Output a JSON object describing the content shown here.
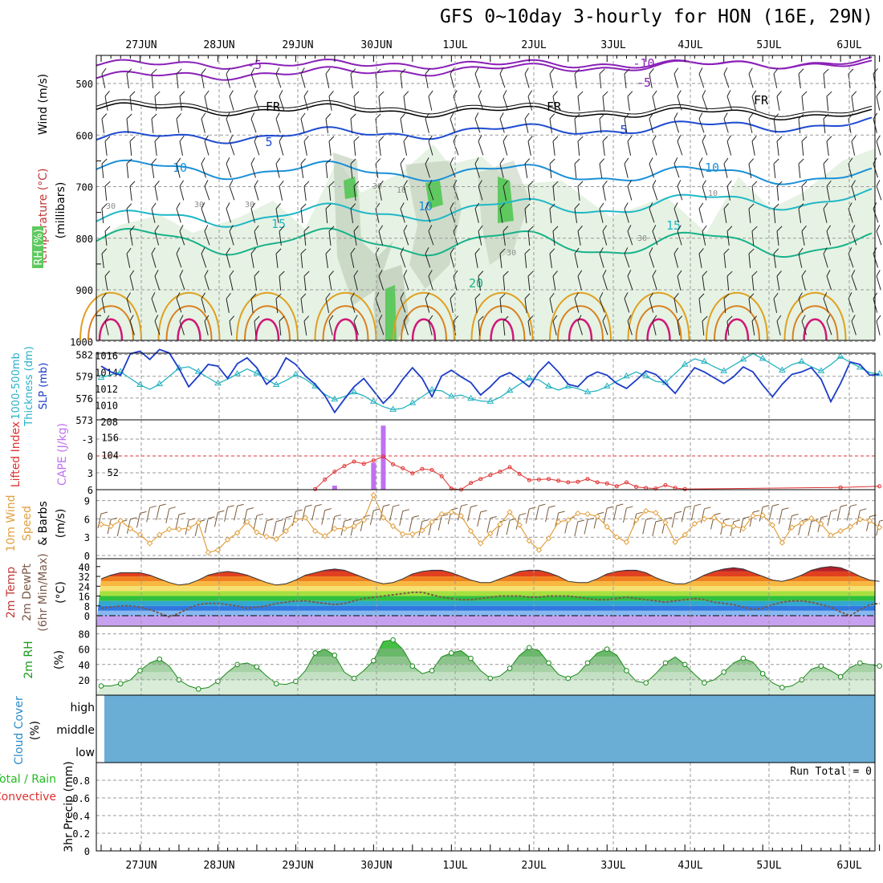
{
  "header": {
    "title": "GFS 0~10day 3-hourly for HON (16E, 29N)"
  },
  "dates": [
    "27JUN",
    "28JUN",
    "29JUN",
    "30JUN",
    "1JUL",
    "2JUL",
    "3JUL",
    "4JUL",
    "5JUL",
    "6JUL"
  ],
  "colors": {
    "frame": "#000000",
    "grid": "#9a9a9a",
    "rh_light": "#e6f2e3",
    "rh_mid": "#b9c9b4",
    "rh_green": "#5ec95e",
    "sky": "#6aaed6"
  },
  "panels": {
    "upper": {
      "ylabel_wind": "Wind (m/s)",
      "ylabel_temp": "Temperature (°C)",
      "ylabel_rh": "RH (%)",
      "ylabel_pressure": "(millibars)",
      "levels": [
        "500",
        "600",
        "700",
        "800",
        "900",
        "1000"
      ],
      "isotherm_labels": [
        "-5",
        "-10",
        "-5",
        "FR",
        "FR",
        "FR",
        "5",
        "5",
        "10",
        "10",
        "10",
        "15",
        "15",
        "20"
      ],
      "rh_labels": [
        "30",
        "30",
        "30",
        "30",
        "10",
        "30",
        "30",
        "10"
      ]
    },
    "thickness": {
      "ylabel_left": "1000-500mb",
      "ylabel_left2": "Thickness (dm)",
      "ylabel_right": "SLP (mb)",
      "left_ticks": [
        "582",
        "579",
        "576",
        "573"
      ],
      "right_ticks": [
        "1016",
        "1014",
        "1012",
        "1010",
        "208"
      ]
    },
    "li_cape": {
      "ylabel_li": "Lifted Index",
      "ylabel_cape": "CAPE (J/kg)",
      "li_ticks": [
        "-3",
        "0",
        "3",
        "6"
      ],
      "cape_ticks": [
        "156",
        "104",
        "52"
      ]
    },
    "wind10": {
      "ylabel1": "10m Wind",
      "ylabel2": "Speed",
      "ylabel3": "& Barbs",
      "unit": "(m/s)",
      "ticks": [
        "9",
        "6",
        "3",
        "0"
      ]
    },
    "temp2m": {
      "ylabel1": "2m Temp",
      "ylabel2": "2m DewPt",
      "ylabel3": "(6hr Min/Max)",
      "unit": "(°C)",
      "ticks": [
        "40",
        "32",
        "24",
        "16",
        "8",
        "0"
      ]
    },
    "rh2m": {
      "ylabel": "2m RH",
      "unit": "(%)",
      "ticks": [
        "80",
        "60",
        "40",
        "20"
      ]
    },
    "cloud": {
      "ylabel1": "Cloud Cover",
      "ylabel2": "(%)",
      "rows": [
        "high",
        "middle",
        "low"
      ]
    },
    "precip": {
      "ylabel1": "Total / Rain",
      "ylabel2": "Convective",
      "ylabel3": "3hr Precip (mm)",
      "ticks": [
        "0.8",
        "0.6",
        "0.4",
        "0.2",
        "0"
      ],
      "run_total": "Run Total = 0"
    }
  },
  "chart_data": [
    {
      "type": "line",
      "title": "1000-500mb Thickness / SLP",
      "ylabel": "Thickness (dm) / SLP (mb)",
      "x": [
        0,
        1,
        2,
        3,
        4,
        5,
        6,
        7,
        8,
        9,
        10,
        11,
        12,
        13,
        14,
        15,
        16,
        17,
        18,
        19,
        20,
        21,
        22,
        23,
        24,
        25,
        26,
        27,
        28,
        29,
        30,
        31,
        32,
        33,
        34,
        35,
        36,
        37,
        38,
        39,
        40,
        41,
        42,
        43,
        44,
        45,
        46,
        47,
        48,
        49,
        50,
        51,
        52,
        53,
        54,
        55,
        56,
        57,
        58,
        59,
        60,
        61,
        62,
        63,
        64,
        65,
        66,
        67,
        68,
        69,
        70,
        71,
        72,
        73,
        74,
        75,
        76,
        77,
        78,
        79,
        80
      ],
      "series": [
        {
          "name": "Thickness (dm)",
          "values": [
            578.8,
            579.2,
            579.6,
            578.7,
            577.8,
            577.2,
            577.9,
            579.0,
            580.1,
            580.3,
            579.6,
            578.8,
            578.0,
            578.6,
            579.3,
            580.0,
            579.4,
            578.6,
            577.8,
            578.4,
            579.2,
            578.6,
            577.6,
            576.5,
            575.8,
            576.2,
            576.8,
            576.3,
            575.5,
            574.8,
            574.4,
            574.6,
            575.3,
            576.2,
            577.1,
            577.0,
            576.2,
            576.4,
            575.9,
            575.6,
            575.5,
            576.1,
            577.0,
            577.9,
            578.7,
            578.5,
            577.6,
            577.1,
            577.6,
            577.3,
            576.8,
            577.0,
            577.6,
            578.3,
            579.0,
            579.6,
            579.0,
            578.3,
            578.1,
            579.4,
            580.6,
            581.4,
            581.0,
            580.3,
            579.7,
            580.5,
            581.3,
            582.1,
            581.4,
            580.6,
            579.8,
            580.6,
            581.0,
            580.3,
            579.7,
            580.6,
            581.7,
            580.9,
            580.2,
            579.5,
            579.3
          ]
        },
        {
          "name": "SLP (mb)",
          "values": [
            1014.7,
            1014.0,
            1013.6,
            1016.2,
            1016.5,
            1015.5,
            1016.7,
            1016.3,
            1014.4,
            1012.2,
            1013.5,
            1014.9,
            1014.7,
            1013.2,
            1015.0,
            1015.7,
            1014.5,
            1012.5,
            1013.5,
            1015.7,
            1014.9,
            1013.5,
            1012.5,
            1011.1,
            1009.1,
            1010.7,
            1012.2,
            1013.2,
            1011.7,
            1010.2,
            1011.4,
            1013.1,
            1014.5,
            1013.2,
            1011.0,
            1013.5,
            1014.2,
            1013.4,
            1012.7,
            1011.2,
            1012.2,
            1013.4,
            1013.9,
            1013.1,
            1012.2,
            1014.0,
            1015.2,
            1014.0,
            1012.5,
            1012.2,
            1013.4,
            1014.0,
            1013.6,
            1012.6,
            1012.0,
            1013.0,
            1014.1,
            1013.7,
            1012.6,
            1011.4,
            1013.0,
            1014.5,
            1014.0,
            1013.3,
            1012.6,
            1013.4,
            1014.6,
            1014.0,
            1012.4,
            1011.0,
            1012.5,
            1013.7,
            1014.0,
            1014.5,
            1013.1,
            1010.4,
            1012.6,
            1015.2,
            1014.9,
            1013.6,
            1013.7
          ]
        }
      ]
    },
    {
      "type": "bar",
      "title": "Lifted Index / CAPE",
      "x": [
        24,
        28,
        29
      ],
      "series": [
        {
          "name": "CAPE (J/kg)",
          "values": [
            12,
            80,
            190
          ]
        },
        {
          "name": "Lifted Index",
          "x": [
            22,
            23,
            24,
            25,
            26,
            27,
            28,
            29,
            30,
            31,
            32,
            33,
            34,
            35,
            36,
            37,
            38,
            39,
            40,
            41,
            42,
            43,
            44,
            45,
            46,
            47,
            48,
            49,
            50,
            51,
            52,
            53,
            54,
            55,
            56,
            57,
            58,
            59,
            60,
            76,
            80
          ],
          "values": [
            5.9,
            4.2,
            2.8,
            1.8,
            1.0,
            1.4,
            0.8,
            0.1,
            1.5,
            2.2,
            3.1,
            2.3,
            2.5,
            3.6,
            5.8,
            6.0,
            4.8,
            4.1,
            3.4,
            2.8,
            2.0,
            3.2,
            4.3,
            4.2,
            4.1,
            4.4,
            4.7,
            4.6,
            4.1,
            4.7,
            4.9,
            5.4,
            4.7,
            5.5,
            5.7,
            5.8,
            5.2,
            5.7,
            5.9,
            5.6,
            5.4
          ]
        }
      ],
      "li_range": [
        6,
        -6
      ],
      "cape_range": [
        0,
        208
      ]
    },
    {
      "type": "line",
      "title": "10m Wind Speed",
      "ylabel": "(m/s)",
      "ylim": [
        0,
        10
      ],
      "series": [
        {
          "name": "10m Wind Speed",
          "values": [
            5.1,
            4.8,
            5.7,
            4.4,
            3.4,
            2.0,
            3.4,
            4.3,
            4.3,
            4.5,
            5.4,
            0.5,
            0.9,
            2.6,
            3.7,
            5.5,
            3.8,
            3.1,
            2.7,
            4.0,
            5.8,
            6.2,
            4.0,
            3.2,
            4.4,
            4.4,
            4.8,
            5.8,
            9.9,
            6.2,
            4.8,
            3.5,
            3.5,
            4.1,
            5.5,
            6.8,
            7.1,
            6.5,
            4.0,
            2.0,
            3.6,
            5.1,
            7.1,
            5.0,
            2.4,
            0.9,
            2.8,
            5.5,
            5.8,
            6.9,
            6.8,
            6.4,
            4.7,
            3.0,
            2.2,
            5.8,
            7.3,
            7.0,
            5.4,
            2.2,
            3.4,
            5.2,
            6.0,
            6.2,
            5.0,
            4.8,
            4.4,
            6.5,
            6.6,
            5.0,
            2.1,
            4.6,
            5.3,
            6.1,
            5.2,
            3.3,
            4.0,
            4.7,
            5.9,
            5.7,
            4.6
          ]
        }
      ]
    },
    {
      "type": "area",
      "title": "2m Temp / 2m DewPt",
      "ylabel": "(°C)",
      "ylim": [
        -2,
        42
      ],
      "series": [
        {
          "name": "2m Temp",
          "values": [
            30,
            33,
            35,
            35,
            35,
            33,
            30,
            27,
            25,
            26,
            29,
            33,
            35,
            36,
            35,
            33,
            30,
            27,
            25,
            26,
            29,
            33,
            35,
            37,
            38,
            37,
            34,
            31,
            28,
            26,
            27,
            30,
            34,
            36,
            37,
            37,
            35,
            32,
            29,
            27,
            27,
            30,
            33,
            36,
            37,
            37,
            35,
            32,
            28,
            27,
            27,
            30,
            34,
            36,
            37,
            37,
            35,
            31,
            28,
            26,
            26,
            29,
            33,
            36,
            38,
            39,
            38,
            35,
            32,
            29,
            28,
            30,
            33,
            37,
            39,
            40,
            39,
            36,
            32,
            29,
            28
          ]
        },
        {
          "name": "2m DewPt",
          "values": [
            6,
            7,
            8,
            8,
            7,
            5,
            2,
            -1,
            2,
            6,
            9,
            10,
            10,
            9,
            8,
            6,
            7,
            8,
            10,
            11,
            12,
            12,
            11,
            10,
            9,
            10,
            12,
            14,
            15,
            16,
            17,
            18,
            19,
            19,
            17,
            15,
            14,
            13,
            13,
            14,
            15,
            16,
            16,
            16,
            15,
            15,
            16,
            16,
            16,
            15,
            14,
            13,
            13,
            14,
            15,
            14,
            13,
            12,
            11,
            12,
            13,
            14,
            13,
            11,
            10,
            9,
            7,
            5,
            6,
            9,
            11,
            12,
            12,
            11,
            9,
            7,
            3,
            0,
            5,
            9,
            10
          ]
        }
      ]
    },
    {
      "type": "area",
      "title": "2m RH",
      "ylabel": "(%)",
      "ylim": [
        0,
        90
      ],
      "series": [
        {
          "name": "2m RH",
          "values": [
            12,
            12,
            15,
            20,
            32,
            42,
            47,
            38,
            20,
            12,
            8,
            10,
            18,
            30,
            40,
            42,
            37,
            25,
            15,
            14,
            18,
            32,
            55,
            60,
            52,
            30,
            22,
            32,
            45,
            70,
            72,
            60,
            38,
            28,
            32,
            50,
            55,
            58,
            48,
            32,
            22,
            25,
            35,
            52,
            62,
            58,
            42,
            27,
            22,
            28,
            42,
            55,
            60,
            52,
            32,
            18,
            16,
            28,
            42,
            50,
            40,
            27,
            16,
            20,
            30,
            42,
            48,
            43,
            28,
            16,
            10,
            12,
            20,
            34,
            38,
            32,
            24,
            36,
            42,
            40,
            38
          ]
        }
      ]
    },
    {
      "type": "bar",
      "title": "3hr Precip",
      "ylabel": "3hr Precip (mm)",
      "ylim": [
        0,
        1
      ],
      "series": [
        {
          "name": "3hr Precip",
          "values": [
            0,
            0,
            0,
            0,
            0,
            0,
            0,
            0,
            0,
            0,
            0,
            0,
            0,
            0,
            0,
            0,
            0,
            0,
            0,
            0,
            0,
            0,
            0,
            0,
            0,
            0,
            0,
            0,
            0,
            0,
            0,
            0,
            0,
            0,
            0,
            0,
            0,
            0,
            0,
            0,
            0,
            0,
            0,
            0,
            0,
            0,
            0,
            0,
            0,
            0,
            0,
            0,
            0,
            0,
            0,
            0,
            0,
            0,
            0,
            0,
            0,
            0,
            0,
            0,
            0,
            0,
            0,
            0,
            0,
            0,
            0,
            0,
            0,
            0,
            0,
            0,
            0,
            0,
            0,
            0,
            0
          ]
        }
      ]
    }
  ]
}
